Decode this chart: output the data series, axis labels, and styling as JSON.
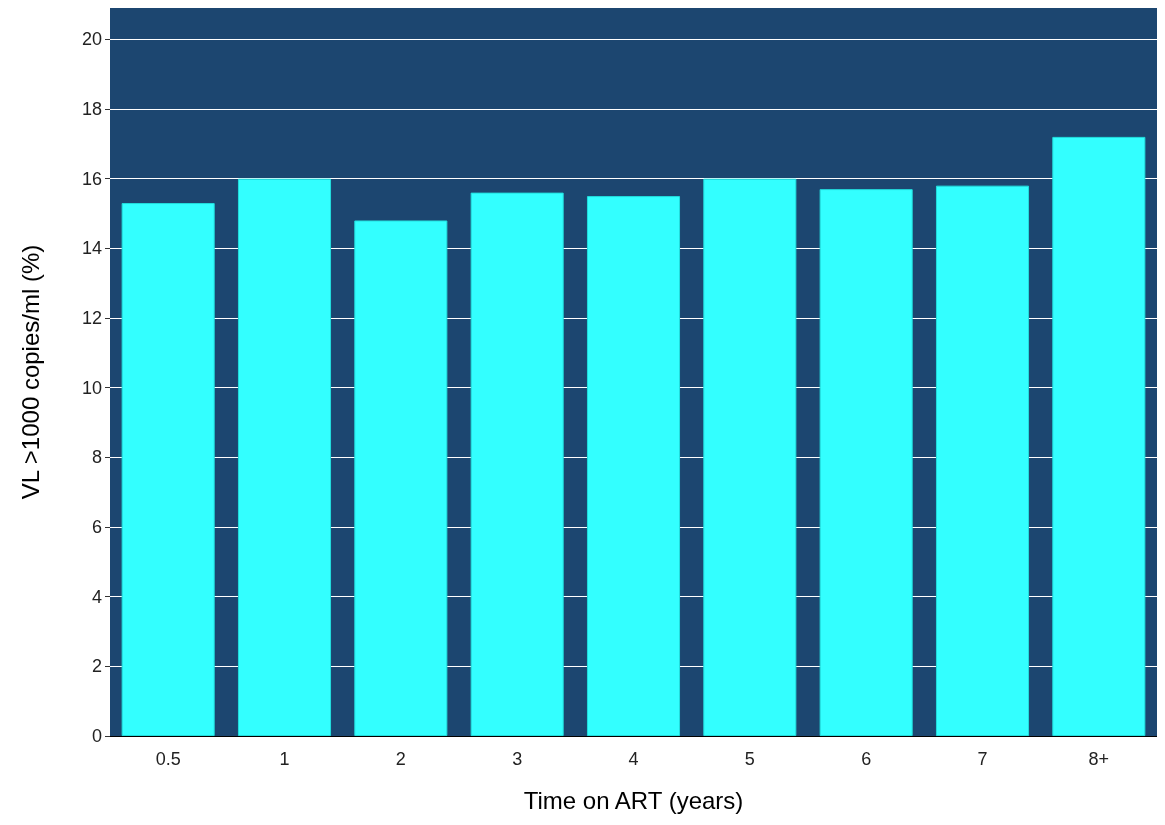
{
  "chart_data": {
    "type": "bar",
    "xlabel": "Time on ART (years)",
    "ylabel": "VL >1000 copies/ml (%)",
    "categories": [
      "0.5",
      "1",
      "2",
      "3",
      "4",
      "5",
      "6",
      "7",
      "8+"
    ],
    "values": [
      15.3,
      16.0,
      14.8,
      15.6,
      15.5,
      16.0,
      15.7,
      15.8,
      17.2
    ],
    "color": "#33ffff",
    "ylim": [
      0,
      20.9
    ],
    "yticks": [
      0,
      2,
      4,
      6,
      8,
      10,
      12,
      14,
      16,
      18,
      20
    ],
    "grid": "y",
    "bands": [
      {
        "axis": "y",
        "from": 0,
        "to": 20.9,
        "color": "#1c4670"
      }
    ]
  }
}
